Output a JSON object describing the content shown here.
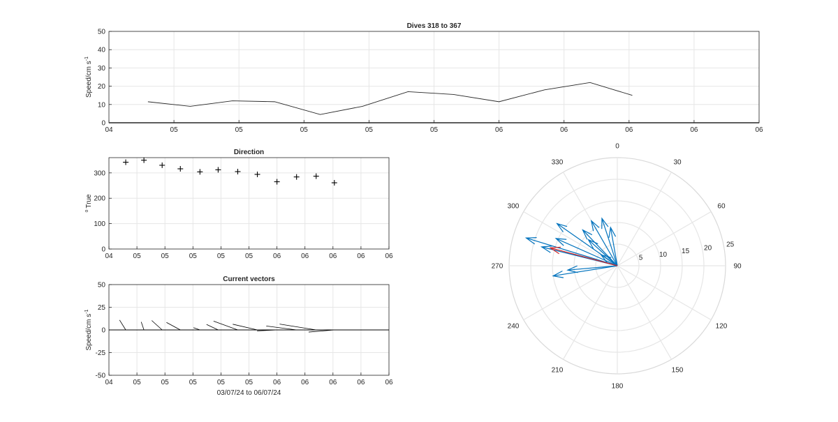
{
  "chart_data": [
    {
      "type": "line",
      "title": "Dives 318 to 367",
      "ylabel": "Speed/cm s",
      "ylabel_sup": "-1",
      "ylim": [
        0,
        50
      ],
      "yticks": [
        0,
        10,
        20,
        30,
        40,
        50
      ],
      "xlim": [
        0,
        10
      ],
      "xticks": [
        0,
        1,
        2,
        3,
        4,
        5,
        6,
        7,
        8,
        9,
        10
      ],
      "xticklabels": [
        "04",
        "05",
        "05",
        "05",
        "05",
        "05",
        "06",
        "06",
        "06",
        "06",
        "06"
      ],
      "grid": true,
      "series": [
        {
          "color": "#262626",
          "x": [
            0.6,
            1.25,
            1.9,
            2.55,
            3.25,
            3.9,
            4.6,
            5.3,
            6.0,
            6.7,
            7.4,
            8.05
          ],
          "y": [
            11.5,
            9.0,
            12.0,
            11.5,
            4.5,
            9.0,
            17.0,
            15.5,
            11.5,
            18.0,
            22.0,
            15.0
          ]
        },
        {
          "color": "#262626",
          "x": [
            0,
            10
          ],
          "y": [
            0,
            0
          ]
        }
      ]
    },
    {
      "type": "scatter",
      "title": "Direction",
      "ylabel": "True",
      "ylabel_sup": "o",
      "ylim": [
        0,
        360
      ],
      "yticks": [
        0,
        100,
        200,
        300
      ],
      "xlim": [
        0,
        10
      ],
      "xticks": [
        0,
        1,
        2,
        3,
        4,
        5,
        6,
        7,
        8,
        9,
        10
      ],
      "xticklabels": [
        "04",
        "05",
        "05",
        "05",
        "05",
        "05",
        "06",
        "06",
        "06",
        "06",
        "06"
      ],
      "grid": true,
      "marker": "+",
      "series": [
        {
          "x": [
            0.6,
            1.25,
            1.9,
            2.55,
            3.25,
            3.9,
            4.6,
            5.3,
            6.0,
            6.7,
            7.4,
            8.05
          ],
          "y": [
            342,
            350,
            330,
            316,
            304,
            312,
            305,
            294,
            265,
            284,
            287,
            261
          ]
        }
      ]
    },
    {
      "type": "line",
      "title": "Current vectors",
      "ylabel": "Speed/cm s",
      "ylabel_sup": "-1",
      "xlabel": "03/07/24 to 06/07/24",
      "ylim": [
        -50,
        50
      ],
      "yticks": [
        -50,
        -25,
        0,
        25,
        50
      ],
      "yticklabels": [
        "-50",
        "-25",
        "0",
        "25",
        "50"
      ],
      "xlim": [
        0,
        10
      ],
      "xticks": [
        0,
        1,
        2,
        3,
        4,
        5,
        6,
        7,
        8,
        9,
        10
      ],
      "xticklabels": [
        "04",
        "05",
        "05",
        "05",
        "05",
        "05",
        "06",
        "06",
        "06",
        "06",
        "06"
      ],
      "grid": true,
      "vectors": [
        {
          "x": 0.6,
          "speed": 11.5,
          "direction": 342
        },
        {
          "x": 1.25,
          "speed": 9.0,
          "direction": 350
        },
        {
          "x": 1.9,
          "speed": 12.0,
          "direction": 330
        },
        {
          "x": 2.55,
          "speed": 11.5,
          "direction": 316
        },
        {
          "x": 3.25,
          "speed": 4.5,
          "direction": 304
        },
        {
          "x": 3.9,
          "speed": 9.0,
          "direction": 312
        },
        {
          "x": 4.6,
          "speed": 17.0,
          "direction": 305
        },
        {
          "x": 5.3,
          "speed": 15.5,
          "direction": 294
        },
        {
          "x": 6.0,
          "speed": 11.5,
          "direction": 265
        },
        {
          "x": 6.7,
          "speed": 18.0,
          "direction": 284
        },
        {
          "x": 7.4,
          "speed": 22.0,
          "direction": 287
        },
        {
          "x": 8.05,
          "speed": 15.0,
          "direction": 261
        }
      ]
    },
    {
      "type": "polar",
      "rlim": [
        0,
        25
      ],
      "rticks": [
        5,
        10,
        15,
        20,
        25
      ],
      "theta_zero": "top",
      "theta_direction": "clockwise",
      "thetaticks": [
        0,
        30,
        60,
        90,
        120,
        150,
        180,
        210,
        240,
        270,
        300,
        330
      ],
      "grid": true,
      "series": [
        {
          "color": "#0072bd",
          "vectors": [
            {
              "speed": 11.5,
              "direction": 342
            },
            {
              "speed": 9.0,
              "direction": 350
            },
            {
              "speed": 12.0,
              "direction": 330
            },
            {
              "speed": 11.5,
              "direction": 316
            },
            {
              "speed": 4.5,
              "direction": 304
            },
            {
              "speed": 9.0,
              "direction": 312
            },
            {
              "speed": 17.0,
              "direction": 305
            },
            {
              "speed": 15.5,
              "direction": 294
            },
            {
              "speed": 11.5,
              "direction": 265
            },
            {
              "speed": 18.0,
              "direction": 284
            },
            {
              "speed": 22.0,
              "direction": 287
            },
            {
              "speed": 15.0,
              "direction": 261
            }
          ]
        },
        {
          "color": "#d62728",
          "vectors": [
            {
              "speed": 16.0,
              "direction": 285
            }
          ]
        }
      ]
    }
  ]
}
